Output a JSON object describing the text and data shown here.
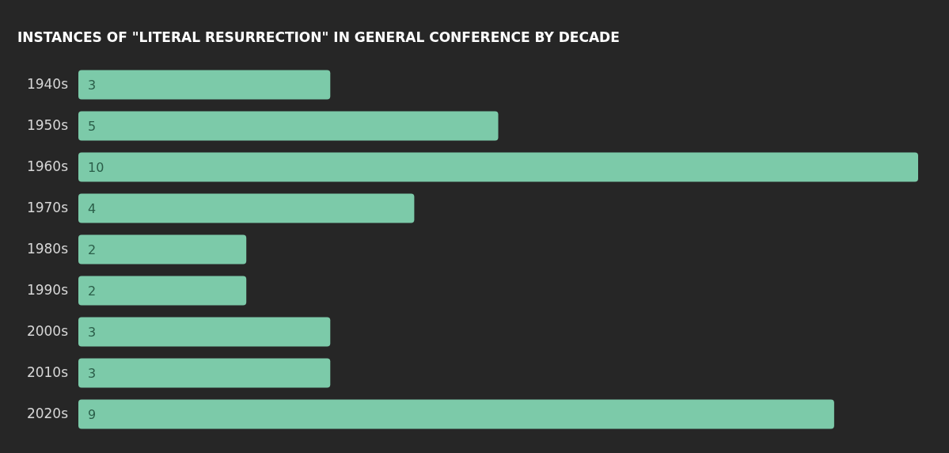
{
  "chart_data": {
    "type": "bar",
    "orientation": "horizontal",
    "title": "INSTANCES OF \"LITERAL RESURRECTION\" IN GENERAL CONFERENCE BY DECADE",
    "categories": [
      "1940s",
      "1950s",
      "1960s",
      "1970s",
      "1980s",
      "1990s",
      "2000s",
      "2010s",
      "2020s"
    ],
    "values": [
      3,
      5,
      10,
      4,
      2,
      2,
      3,
      3,
      9
    ],
    "color": "#7ccaa9",
    "data_labels": true
  }
}
